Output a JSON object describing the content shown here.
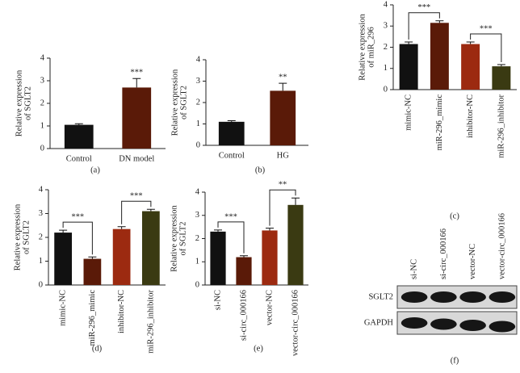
{
  "chart_data": [
    {
      "type": "bar",
      "panel": "(a)",
      "ylabel": [
        "Relative expression",
        "of SGLT2"
      ],
      "categories": [
        "Control",
        "DN model"
      ],
      "values": [
        1.05,
        2.7
      ],
      "errors": [
        0.05,
        0.4
      ],
      "colors": [
        "#111111",
        "#5a1a08"
      ],
      "ylim": [
        0,
        4
      ],
      "yticks": [
        0,
        1,
        2,
        3,
        4
      ],
      "significance": [
        {
          "label": "***",
          "categories": [
            "DN model"
          ]
        }
      ]
    },
    {
      "type": "bar",
      "panel": "(b)",
      "ylabel": [
        "Relative expression",
        "of SGLT2"
      ],
      "categories": [
        "Control",
        "HG"
      ],
      "values": [
        1.1,
        2.55
      ],
      "errors": [
        0.05,
        0.35
      ],
      "colors": [
        "#111111",
        "#5a1a08"
      ],
      "ylim": [
        0,
        4
      ],
      "yticks": [
        0,
        1,
        2,
        3,
        4
      ],
      "significance": [
        {
          "label": "**",
          "categories": [
            "HG"
          ]
        }
      ]
    },
    {
      "type": "bar",
      "panel": "(c)",
      "ylabel": [
        "Relative expression",
        "of miR_296"
      ],
      "categories": [
        "mimic-NC",
        "miR-296_mimic",
        "inhibitor-NC",
        "miR-296_inhibitor"
      ],
      "values": [
        2.15,
        3.15,
        2.15,
        1.1
      ],
      "errors": [
        0.1,
        0.1,
        0.1,
        0.08
      ],
      "colors": [
        "#111111",
        "#5a1a08",
        "#9c2a10",
        "#3a3a12"
      ],
      "ylim": [
        0,
        4
      ],
      "yticks": [
        0,
        1,
        2,
        3,
        4
      ],
      "significance": [
        {
          "label": "***",
          "categories": [
            "mimic-NC",
            "miR-296_mimic"
          ]
        },
        {
          "label": "***",
          "categories": [
            "inhibitor-NC",
            "miR-296_inhibitor"
          ]
        }
      ]
    },
    {
      "type": "bar",
      "panel": "(d)",
      "ylabel": [
        "Relative expression",
        "of SGLT2"
      ],
      "categories": [
        "mimic-NC",
        "miR-296_mimic",
        "inhibitor-NC",
        "miR-296_inhibitor"
      ],
      "values": [
        2.2,
        1.1,
        2.35,
        3.1
      ],
      "errors": [
        0.1,
        0.08,
        0.1,
        0.08
      ],
      "colors": [
        "#111111",
        "#5a1a08",
        "#9c2a10",
        "#3a3a12"
      ],
      "ylim": [
        0,
        4
      ],
      "yticks": [
        0,
        1,
        2,
        3,
        4
      ],
      "significance": [
        {
          "label": "***",
          "categories": [
            "mimic-NC",
            "miR-296_mimic"
          ]
        },
        {
          "label": "***",
          "categories": [
            "inhibitor-NC",
            "miR-296_inhibitor"
          ]
        }
      ]
    },
    {
      "type": "bar",
      "panel": "(e)",
      "ylabel": [
        "Relative expression",
        "of SGLT2"
      ],
      "categories": [
        "si-NC",
        "si-circ_000166",
        "vector-NC",
        "vector-circ_000166"
      ],
      "values": [
        2.3,
        1.2,
        2.35,
        3.45
      ],
      "errors": [
        0.07,
        0.06,
        0.1,
        0.3
      ],
      "colors": [
        "#111111",
        "#5a1a08",
        "#9c2a10",
        "#3a3a12"
      ],
      "ylim": [
        0,
        4
      ],
      "yticks": [
        0,
        1,
        2,
        3,
        4
      ],
      "significance": [
        {
          "label": "***",
          "categories": [
            "si-NC",
            "si-circ_000166"
          ]
        },
        {
          "label": "**",
          "categories": [
            "vector-NC",
            "vector-circ_000166"
          ]
        }
      ]
    }
  ],
  "blot": {
    "panel": "(f)",
    "lanes": [
      "si-NC",
      "si-circ_000166",
      "vector-NC",
      "vector-circ_000166"
    ],
    "rows": [
      "SGLT2",
      "GAPDH"
    ]
  }
}
